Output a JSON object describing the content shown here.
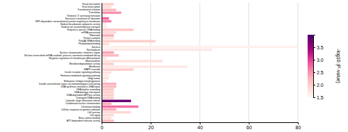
{
  "chart_data": {
    "type": "bar",
    "orientation": "horizontal",
    "grid": true,
    "categories": [
      "Visual perception",
      "Viral transcription",
      "Translational initiation",
      "Translation",
      "Telomeric 3' overhang formation",
      "Structural constituent of ribosome",
      "SRP-dependent cotranslational protein targeting to membrane",
      "Sodium bicarbonate symporter activity",
      "Sodium ion transmembrane transport",
      "Sequence-specific DNA binding",
      "mRNA processing",
      "Ribosome",
      "Protein complex",
      "Poly(A) RNA binding",
      "Phospholipid binding",
      "Nucleus",
      "Nucleoplasm",
      "Nuclear chromosome, telomeric region",
      "Nuclear-transcribed mRNA catabolic process, nonsense-mediated decay",
      "Negative regulation of chondrocyte differentiation",
      "Mitochondrion",
      "Metalloendopeptidase activity",
      "Membrane",
      "MAPK cascade",
      "Insulin receptor signaling pathway",
      "Hormone-mediated signaling pathway",
      "Golgi lumen",
      "Embryonic hindgut morphogenesis",
      "Double-strand break repair via nonhomologous end joining",
      "DNA synthesis involved in DNA repair",
      "DNA duplex unwinding",
      "DNA damage checkpoint",
      "DNA-dependent ATPase activity",
      "Damaged DNA binding",
      "Cytosolic large ribosomal subunit",
      "Condensed nuclear chromosome",
      "Chromatin binding",
      "Cellular response to gamma radiation",
      "Cell junction",
      "Cell aging",
      "Beta-catenin binding",
      "ATP-dependent helicase activity"
    ],
    "values": [
      5,
      4,
      6,
      8,
      2,
      3,
      4,
      2,
      2,
      13,
      6,
      5,
      5,
      22,
      3,
      80,
      45,
      5,
      7,
      2,
      25,
      5,
      35,
      13,
      4,
      3,
      3,
      2,
      6,
      6,
      5,
      5,
      5,
      5,
      12,
      4,
      15,
      6,
      12,
      5,
      4,
      5
    ],
    "color_values": [
      2.0,
      1.8,
      2.2,
      2.5,
      1.6,
      2.8,
      2.6,
      1.7,
      1.7,
      2.1,
      1.9,
      2.3,
      1.8,
      2.0,
      1.9,
      1.6,
      1.7,
      2.4,
      2.2,
      1.7,
      1.8,
      2.0,
      1.7,
      2.0,
      1.8,
      1.7,
      1.8,
      1.7,
      2.3,
      2.2,
      2.1,
      2.0,
      2.0,
      2.0,
      3.8,
      2.3,
      2.7,
      2.3,
      1.9,
      1.9,
      1.8,
      2.2
    ],
    "color_range": [
      1.5,
      4.0
    ],
    "color_ticks": [
      1.5,
      {
        "value": 2.0,
        "label": "2.0"
      },
      2.5,
      {
        "value": 3.0,
        "label": "3.0"
      },
      3.5
    ],
    "color_label": "-log10 (P-value)",
    "xlim": [
      0,
      80
    ],
    "xticks": [
      0,
      20,
      40,
      60,
      80
    ]
  }
}
